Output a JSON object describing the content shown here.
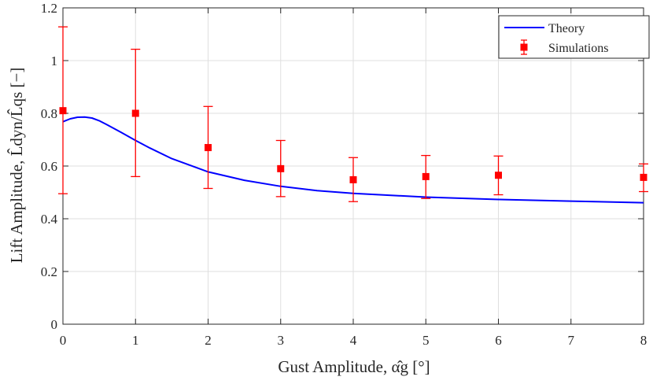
{
  "chart_data": {
    "type": "line",
    "xlabel": "Gust Amplitude, α̂g [°]",
    "ylabel": "Lift Amplitude, L̂dyn/L̂qs [−]",
    "xlim": [
      0,
      8
    ],
    "ylim": [
      0,
      1.2
    ],
    "xticks": [
      "0",
      "1",
      "2",
      "3",
      "4",
      "5",
      "6",
      "7",
      "8"
    ],
    "yticks": [
      "0",
      "0.2",
      "0.4",
      "0.6",
      "0.8",
      "1",
      "1.2"
    ],
    "grid": true,
    "legend_position": "top-right",
    "series": [
      {
        "name": "Theory",
        "kind": "line",
        "color": "#0000ff",
        "x": [
          0,
          0.1,
          0.2,
          0.3,
          0.4,
          0.5,
          0.6,
          0.8,
          1.0,
          1.2,
          1.5,
          2.0,
          2.5,
          3.0,
          3.5,
          4.0,
          5.0,
          6.0,
          7.0,
          8.0
        ],
        "y": [
          0.768,
          0.779,
          0.785,
          0.786,
          0.782,
          0.772,
          0.758,
          0.728,
          0.697,
          0.668,
          0.628,
          0.578,
          0.546,
          0.523,
          0.507,
          0.496,
          0.482,
          0.473,
          0.467,
          0.461
        ]
      },
      {
        "name": "Simulations",
        "kind": "errorbar",
        "color": "#ff0000",
        "x": [
          0,
          1,
          2,
          3,
          4,
          5,
          6,
          8
        ],
        "y": [
          0.81,
          0.8,
          0.67,
          0.59,
          0.548,
          0.56,
          0.565,
          0.557
        ],
        "lower": [
          0.495,
          0.56,
          0.515,
          0.484,
          0.465,
          0.477,
          0.491,
          0.503
        ],
        "upper": [
          1.128,
          1.043,
          0.826,
          0.697,
          0.632,
          0.64,
          0.638,
          0.608
        ]
      }
    ]
  }
}
